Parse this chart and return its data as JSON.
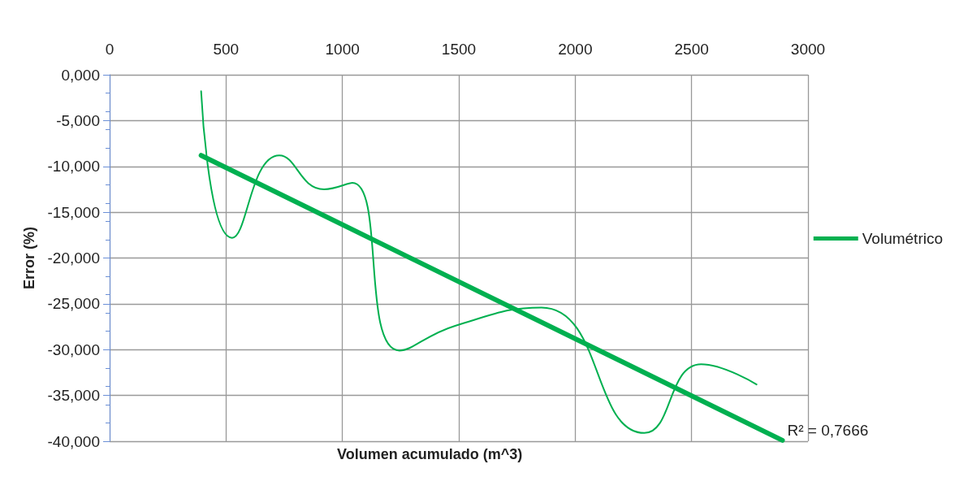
{
  "chart_data": {
    "type": "line",
    "xlabel": "Volumen acumulado (m^3)",
    "ylabel": "Error (%)",
    "series": [
      {
        "name": "Volumétrico",
        "color": "#00b050",
        "x": [
          393,
          526,
          729,
          921,
          1043,
          1245,
          1484,
          1855,
          2297,
          2541,
          2779
        ],
        "values": [
          -1.8,
          -17.8,
          -8.8,
          -12.5,
          -11.8,
          -30.1,
          -27.4,
          -25.4,
          -39.1,
          -31.6,
          -33.8
        ]
      },
      {
        "type": "line",
        "color": "#00b050",
        "x": [
          393,
          2890
        ],
        "values": [
          -8.8,
          -39.9
        ]
      }
    ],
    "xlim": [
      0,
      3000
    ],
    "xticks": [
      0,
      500,
      1000,
      1500,
      2000,
      2500,
      3000
    ],
    "ylim": [
      -40,
      0
    ],
    "yticks": [
      {
        "value": 0,
        "label": "0,000"
      },
      {
        "value": -5,
        "label": "-5,000"
      },
      {
        "value": -10,
        "label": "-10,000"
      },
      {
        "value": -15,
        "label": "-15,000"
      },
      {
        "value": -20,
        "label": "-20,000"
      },
      {
        "value": -25,
        "label": "-25,000"
      },
      {
        "value": -30,
        "label": "-30,000"
      },
      {
        "value": -35,
        "label": "-35,000"
      },
      {
        "value": -40,
        "label": "-40,000"
      }
    ],
    "annotations": [
      {
        "text": "R² = 0,7666",
        "x": 2890,
        "y": -39.9
      }
    ],
    "grid": true,
    "legend": "right",
    "marker": "none",
    "line_style": "solid"
  }
}
